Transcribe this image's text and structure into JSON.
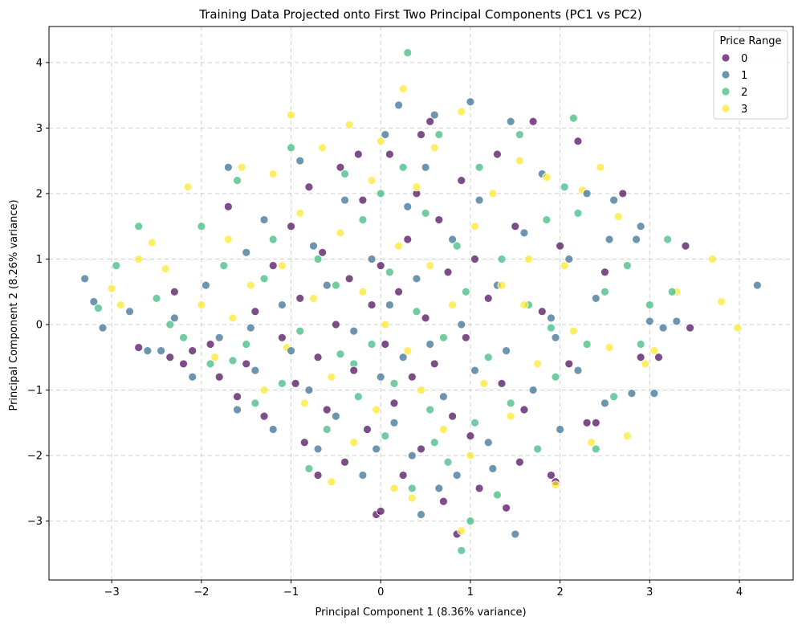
{
  "chart_data": {
    "type": "scatter",
    "title": "Training Data Projected onto First Two Principal Components (PC1 vs PC2)",
    "xlabel": "Principal Component 1 (8.36% variance)",
    "ylabel": "Principal Component 2 (8.26% variance)",
    "xlim": [
      -3.7,
      4.6
    ],
    "ylim": [
      -3.9,
      4.55
    ],
    "xticks": [
      -3,
      -2,
      -1,
      0,
      1,
      2,
      3,
      4
    ],
    "yticks": [
      -3,
      -2,
      -1,
      0,
      1,
      2,
      3,
      4
    ],
    "grid": true,
    "legend": {
      "title": "Price Range",
      "placement": "top-right",
      "entries": [
        "0",
        "1",
        "2",
        "3"
      ]
    },
    "series": [
      {
        "name": "0",
        "color": "#440154",
        "points": [
          [
            -2.7,
            -0.35
          ],
          [
            -2.35,
            -0.5
          ],
          [
            -2.2,
            -0.6
          ],
          [
            -2.1,
            -0.4
          ],
          [
            -1.9,
            -0.3
          ],
          [
            -1.8,
            -0.8
          ],
          [
            -1.6,
            -1.1
          ],
          [
            -1.5,
            -0.6
          ],
          [
            -1.4,
            0.2
          ],
          [
            -1.3,
            -1.4
          ],
          [
            -1.2,
            0.9
          ],
          [
            -1.1,
            -0.2
          ],
          [
            -1.0,
            1.5
          ],
          [
            -0.95,
            -0.9
          ],
          [
            -0.9,
            0.4
          ],
          [
            -0.85,
            -1.8
          ],
          [
            -0.8,
            2.1
          ],
          [
            -0.7,
            -0.5
          ],
          [
            -0.65,
            1.1
          ],
          [
            -0.6,
            -1.3
          ],
          [
            -0.5,
            0.0
          ],
          [
            -0.45,
            2.4
          ],
          [
            -0.4,
            -2.1
          ],
          [
            -0.35,
            0.7
          ],
          [
            -0.3,
            -0.7
          ],
          [
            -0.2,
            1.9
          ],
          [
            -0.15,
            -1.6
          ],
          [
            -0.1,
            0.3
          ],
          [
            -0.05,
            -2.9
          ],
          [
            0.0,
            0.9
          ],
          [
            0.05,
            -0.3
          ],
          [
            0.1,
            2.6
          ],
          [
            0.15,
            -1.2
          ],
          [
            0.2,
            0.5
          ],
          [
            0.25,
            -2.3
          ],
          [
            0.3,
            1.3
          ],
          [
            0.35,
            -0.8
          ],
          [
            0.4,
            2.0
          ],
          [
            0.45,
            -1.9
          ],
          [
            0.5,
            0.1
          ],
          [
            0.55,
            3.1
          ],
          [
            0.6,
            -0.6
          ],
          [
            0.65,
            1.6
          ],
          [
            0.7,
            -2.7
          ],
          [
            0.75,
            0.8
          ],
          [
            0.8,
            -1.4
          ],
          [
            0.9,
            2.2
          ],
          [
            0.95,
            -0.2
          ],
          [
            1.0,
            -1.7
          ],
          [
            1.05,
            1.0
          ],
          [
            1.1,
            -2.5
          ],
          [
            1.2,
            0.4
          ],
          [
            1.3,
            2.6
          ],
          [
            1.35,
            -0.9
          ],
          [
            1.4,
            -2.8
          ],
          [
            1.5,
            1.5
          ],
          [
            1.6,
            -1.3
          ],
          [
            1.7,
            3.1
          ],
          [
            1.8,
            0.2
          ],
          [
            1.9,
            -2.3
          ],
          [
            2.0,
            1.2
          ],
          [
            2.1,
            -0.6
          ],
          [
            2.2,
            2.8
          ],
          [
            2.3,
            -1.5
          ],
          [
            2.5,
            0.8
          ],
          [
            2.7,
            2.0
          ],
          [
            2.9,
            -0.5
          ],
          [
            3.1,
            -0.5
          ],
          [
            3.4,
            1.2
          ],
          [
            3.45,
            -0.05
          ],
          [
            -0.7,
            -2.3
          ],
          [
            0.85,
            -3.2
          ],
          [
            -1.7,
            1.8
          ],
          [
            1.55,
            -2.1
          ],
          [
            -2.3,
            0.5
          ],
          [
            0.0,
            -2.85
          ],
          [
            2.4,
            -1.5
          ],
          [
            1.95,
            -2.4
          ],
          [
            -0.25,
            2.6
          ],
          [
            0.45,
            2.9
          ]
        ]
      },
      {
        "name": "1",
        "color": "#31688e",
        "points": [
          [
            -3.3,
            0.7
          ],
          [
            -3.2,
            0.35
          ],
          [
            -3.1,
            -0.05
          ],
          [
            -2.8,
            0.2
          ],
          [
            -2.6,
            -0.4
          ],
          [
            -2.3,
            0.1
          ],
          [
            -2.1,
            -0.8
          ],
          [
            -1.95,
            0.6
          ],
          [
            -1.8,
            -0.2
          ],
          [
            -1.7,
            2.4
          ],
          [
            -1.6,
            -1.3
          ],
          [
            -1.5,
            1.1
          ],
          [
            -1.4,
            -0.7
          ],
          [
            -1.3,
            1.6
          ],
          [
            -1.2,
            -1.6
          ],
          [
            -1.1,
            0.3
          ],
          [
            -1.0,
            -0.4
          ],
          [
            -0.9,
            2.5
          ],
          [
            -0.8,
            -1.0
          ],
          [
            -0.75,
            1.2
          ],
          [
            -0.7,
            -1.9
          ],
          [
            -0.6,
            0.6
          ],
          [
            -0.5,
            -1.4
          ],
          [
            -0.4,
            1.9
          ],
          [
            -0.3,
            -0.1
          ],
          [
            -0.2,
            -2.3
          ],
          [
            -0.1,
            1.0
          ],
          [
            0.0,
            -0.8
          ],
          [
            0.05,
            2.9
          ],
          [
            0.1,
            0.3
          ],
          [
            0.15,
            -1.5
          ],
          [
            0.2,
            3.35
          ],
          [
            0.25,
            -0.5
          ],
          [
            0.3,
            1.8
          ],
          [
            0.35,
            -2.0
          ],
          [
            0.4,
            0.7
          ],
          [
            0.45,
            -2.9
          ],
          [
            0.5,
            2.4
          ],
          [
            0.55,
            -0.3
          ],
          [
            0.6,
            3.2
          ],
          [
            0.7,
            -1.1
          ],
          [
            0.8,
            1.3
          ],
          [
            0.85,
            -2.3
          ],
          [
            0.9,
            0.0
          ],
          [
            1.0,
            3.4
          ],
          [
            1.05,
            -0.7
          ],
          [
            1.1,
            1.9
          ],
          [
            1.2,
            -1.8
          ],
          [
            1.3,
            0.6
          ],
          [
            1.4,
            -0.4
          ],
          [
            1.45,
            3.1
          ],
          [
            1.5,
            -3.2
          ],
          [
            1.6,
            1.4
          ],
          [
            1.7,
            -1.0
          ],
          [
            1.8,
            2.3
          ],
          [
            1.9,
            0.1
          ],
          [
            2.0,
            -1.6
          ],
          [
            2.1,
            1.0
          ],
          [
            2.2,
            -0.7
          ],
          [
            2.3,
            2.0
          ],
          [
            2.4,
            0.4
          ],
          [
            2.5,
            -1.2
          ],
          [
            2.55,
            1.3
          ],
          [
            2.6,
            1.9
          ],
          [
            2.8,
            -1.05
          ],
          [
            2.85,
            1.3
          ],
          [
            2.9,
            1.5
          ],
          [
            3.0,
            0.05
          ],
          [
            3.05,
            -1.05
          ],
          [
            3.15,
            -0.05
          ],
          [
            3.3,
            0.05
          ],
          [
            4.2,
            0.6
          ],
          [
            -1.45,
            -0.05
          ],
          [
            0.65,
            -2.5
          ],
          [
            -0.05,
            -1.9
          ],
          [
            1.25,
            -2.2
          ],
          [
            -2.45,
            -0.4
          ],
          [
            1.95,
            -0.2
          ]
        ]
      },
      {
        "name": "2",
        "color": "#35b779",
        "points": [
          [
            -3.15,
            0.25
          ],
          [
            -2.95,
            0.9
          ],
          [
            -2.7,
            1.5
          ],
          [
            -2.5,
            0.4
          ],
          [
            -2.2,
            -0.2
          ],
          [
            -2.0,
            1.5
          ],
          [
            -1.9,
            -0.6
          ],
          [
            -1.75,
            0.9
          ],
          [
            -1.6,
            2.2
          ],
          [
            -1.5,
            -0.3
          ],
          [
            -1.4,
            -1.2
          ],
          [
            -1.3,
            0.7
          ],
          [
            -1.2,
            1.3
          ],
          [
            -1.1,
            -0.9
          ],
          [
            -1.0,
            2.7
          ],
          [
            -0.9,
            -0.1
          ],
          [
            -0.8,
            -2.2
          ],
          [
            -0.7,
            1.0
          ],
          [
            -0.6,
            -1.6
          ],
          [
            -0.5,
            0.6
          ],
          [
            -0.4,
            2.3
          ],
          [
            -0.3,
            -0.6
          ],
          [
            -0.25,
            -1.1
          ],
          [
            -0.2,
            1.6
          ],
          [
            -0.1,
            -0.3
          ],
          [
            0.0,
            2.0
          ],
          [
            0.05,
            -1.7
          ],
          [
            0.1,
            0.8
          ],
          [
            0.15,
            -0.9
          ],
          [
            0.3,
            4.15
          ],
          [
            0.25,
            2.4
          ],
          [
            0.35,
            -2.5
          ],
          [
            0.4,
            0.2
          ],
          [
            0.5,
            1.7
          ],
          [
            0.55,
            -1.3
          ],
          [
            0.65,
            2.9
          ],
          [
            0.7,
            -0.2
          ],
          [
            0.75,
            -2.1
          ],
          [
            0.85,
            1.2
          ],
          [
            0.9,
            -3.45
          ],
          [
            0.95,
            0.5
          ],
          [
            1.05,
            -1.5
          ],
          [
            1.1,
            2.4
          ],
          [
            1.2,
            -0.5
          ],
          [
            1.3,
            -2.6
          ],
          [
            1.35,
            1.0
          ],
          [
            1.45,
            -1.2
          ],
          [
            1.55,
            2.9
          ],
          [
            1.65,
            0.3
          ],
          [
            1.75,
            -1.9
          ],
          [
            1.85,
            1.6
          ],
          [
            1.95,
            -0.8
          ],
          [
            2.05,
            2.1
          ],
          [
            2.15,
            3.15
          ],
          [
            2.2,
            1.7
          ],
          [
            2.3,
            -0.3
          ],
          [
            2.4,
            -1.9
          ],
          [
            2.5,
            0.5
          ],
          [
            2.6,
            -1.1
          ],
          [
            2.75,
            0.9
          ],
          [
            2.9,
            -0.3
          ],
          [
            3.0,
            0.3
          ],
          [
            3.2,
            1.3
          ],
          [
            3.25,
            0.5
          ],
          [
            1.0,
            -3.0
          ],
          [
            -2.35,
            0.0
          ],
          [
            -1.65,
            -0.55
          ],
          [
            0.6,
            -1.8
          ],
          [
            1.9,
            -0.05
          ],
          [
            -0.45,
            -0.45
          ]
        ]
      },
      {
        "name": "3",
        "color": "#fde725",
        "points": [
          [
            -3.0,
            0.55
          ],
          [
            -2.9,
            0.3
          ],
          [
            -2.7,
            1.0
          ],
          [
            -2.55,
            1.25
          ],
          [
            -2.4,
            0.85
          ],
          [
            -2.15,
            2.1
          ],
          [
            -2.0,
            0.3
          ],
          [
            -1.85,
            -0.5
          ],
          [
            -1.7,
            1.3
          ],
          [
            -1.55,
            2.4
          ],
          [
            -1.45,
            0.6
          ],
          [
            -1.3,
            -1.0
          ],
          [
            -1.2,
            2.3
          ],
          [
            -1.1,
            0.9
          ],
          [
            -1.05,
            -0.35
          ],
          [
            -1.0,
            3.2
          ],
          [
            -0.9,
            1.7
          ],
          [
            -0.85,
            -1.2
          ],
          [
            -0.75,
            0.4
          ],
          [
            -0.65,
            2.7
          ],
          [
            -0.55,
            -0.8
          ],
          [
            -0.45,
            1.4
          ],
          [
            -0.35,
            3.05
          ],
          [
            -0.3,
            -1.8
          ],
          [
            -0.2,
            0.5
          ],
          [
            -0.1,
            2.2
          ],
          [
            -0.05,
            -1.3
          ],
          [
            0.0,
            2.8
          ],
          [
            0.05,
            0.0
          ],
          [
            0.15,
            -2.5
          ],
          [
            0.2,
            1.2
          ],
          [
            0.25,
            3.6
          ],
          [
            0.3,
            -0.4
          ],
          [
            0.4,
            2.1
          ],
          [
            0.45,
            -1.0
          ],
          [
            0.55,
            0.9
          ],
          [
            0.6,
            2.7
          ],
          [
            0.7,
            -1.6
          ],
          [
            0.8,
            0.3
          ],
          [
            0.9,
            3.25
          ],
          [
            1.0,
            -2.0
          ],
          [
            1.05,
            1.5
          ],
          [
            1.15,
            -0.9
          ],
          [
            1.25,
            2.0
          ],
          [
            1.35,
            0.6
          ],
          [
            1.45,
            -1.4
          ],
          [
            1.55,
            2.5
          ],
          [
            1.65,
            1.0
          ],
          [
            1.75,
            -0.6
          ],
          [
            1.85,
            2.25
          ],
          [
            1.95,
            -2.45
          ],
          [
            2.05,
            0.9
          ],
          [
            2.15,
            -0.1
          ],
          [
            2.25,
            2.05
          ],
          [
            2.35,
            -1.8
          ],
          [
            2.45,
            2.4
          ],
          [
            2.55,
            -0.35
          ],
          [
            2.65,
            1.65
          ],
          [
            2.75,
            -1.7
          ],
          [
            2.95,
            -0.6
          ],
          [
            3.05,
            -0.4
          ],
          [
            3.3,
            0.5
          ],
          [
            3.7,
            1.0
          ],
          [
            3.8,
            0.35
          ],
          [
            3.98,
            -0.05
          ],
          [
            0.9,
            -3.15
          ],
          [
            -0.55,
            -2.4
          ],
          [
            1.6,
            0.3
          ],
          [
            -1.65,
            0.1
          ],
          [
            0.35,
            -2.65
          ]
        ]
      }
    ]
  }
}
